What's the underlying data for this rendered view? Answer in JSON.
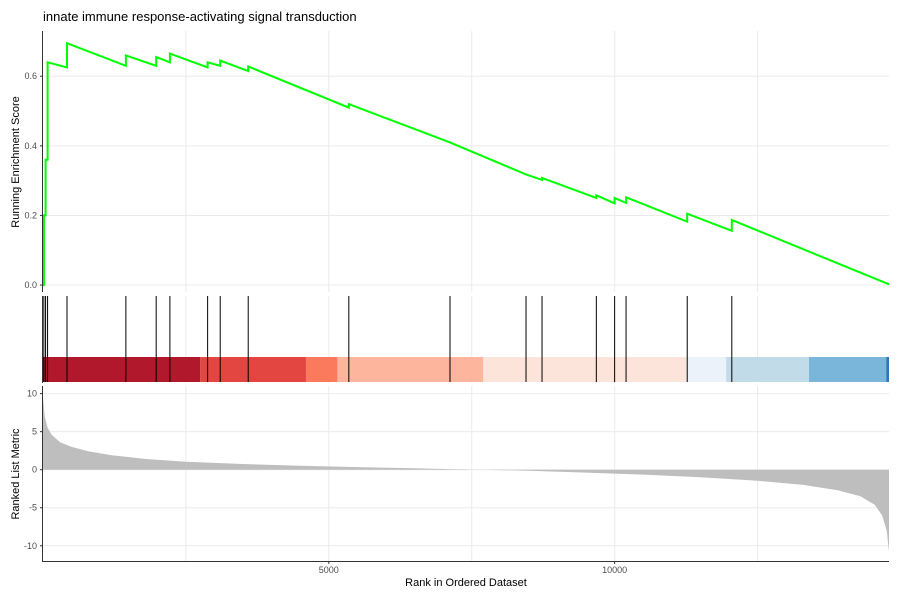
{
  "chart_data": {
    "type": "line",
    "title": "innate immune response-activating signal transduction",
    "xlabel": "Rank in Ordered Dataset",
    "x_range": [
      0,
      14800
    ],
    "x_ticks": [
      5000,
      10000
    ],
    "grid": true,
    "panels": {
      "enrichment": {
        "ylabel": "Running Enrichment Score",
        "ylim": [
          -0.02,
          0.73
        ],
        "y_ticks": [
          0.0,
          0.2,
          0.4,
          0.6
        ],
        "y_tick_labels": [
          "0.0",
          "0.2",
          "0.4",
          "0.6"
        ],
        "line_color": "#00ff00",
        "hit_ranks": [
          15,
          45,
          80,
          420,
          1450,
          1980,
          2220,
          2880,
          3100,
          3590,
          5350,
          7120,
          8450,
          8730,
          9680,
          10000,
          10200,
          11270,
          12050
        ],
        "points": [
          [
            0,
            0.0
          ],
          [
            15,
            0.0
          ],
          [
            15,
            0.2
          ],
          [
            45,
            0.2
          ],
          [
            45,
            0.36
          ],
          [
            80,
            0.36
          ],
          [
            80,
            0.64
          ],
          [
            420,
            0.625
          ],
          [
            420,
            0.695
          ],
          [
            1450,
            0.63
          ],
          [
            1450,
            0.66
          ],
          [
            1980,
            0.63
          ],
          [
            1980,
            0.655
          ],
          [
            2220,
            0.64
          ],
          [
            2220,
            0.665
          ],
          [
            2880,
            0.625
          ],
          [
            2880,
            0.64
          ],
          [
            3100,
            0.63
          ],
          [
            3100,
            0.645
          ],
          [
            3590,
            0.615
          ],
          [
            3590,
            0.628
          ],
          [
            5350,
            0.51
          ],
          [
            5350,
            0.52
          ],
          [
            7120,
            0.41
          ],
          [
            8450,
            0.318
          ],
          [
            8450,
            0.318
          ],
          [
            8730,
            0.302
          ],
          [
            8730,
            0.308
          ],
          [
            9680,
            0.25
          ],
          [
            9680,
            0.258
          ],
          [
            10000,
            0.235
          ],
          [
            10000,
            0.25
          ],
          [
            10200,
            0.236
          ],
          [
            10200,
            0.252
          ],
          [
            11270,
            0.182
          ],
          [
            11270,
            0.205
          ],
          [
            12050,
            0.156
          ],
          [
            12050,
            0.187
          ],
          [
            14800,
            0.002
          ]
        ]
      },
      "color_bar": {
        "segments": [
          {
            "from": 0,
            "to": 2750,
            "color": "#b2182b"
          },
          {
            "from": 2750,
            "to": 4600,
            "color": "#e34541"
          },
          {
            "from": 4600,
            "to": 5150,
            "color": "#fb7a5e"
          },
          {
            "from": 5150,
            "to": 7700,
            "color": "#fdb59d"
          },
          {
            "from": 7700,
            "to": 11250,
            "color": "#fde4da"
          },
          {
            "from": 11250,
            "to": 11950,
            "color": "#ebf2fa"
          },
          {
            "from": 11950,
            "to": 13400,
            "color": "#c2dbe9"
          },
          {
            "from": 13400,
            "to": 14750,
            "color": "#7ab6d9"
          },
          {
            "from": 14750,
            "to": 14800,
            "color": "#2f77b8"
          }
        ]
      },
      "ranked_list": {
        "ylabel": "Ranked List Metric",
        "ylim": [
          -12,
          11
        ],
        "y_ticks": [
          10,
          5,
          0,
          -5,
          -10
        ],
        "y_tick_labels": [
          "10",
          "5",
          "0",
          "-5",
          "-10"
        ],
        "fill_color": "#bebebe",
        "curve": [
          [
            0,
            9.5
          ],
          [
            30,
            7.0
          ],
          [
            80,
            5.5
          ],
          [
            150,
            4.6
          ],
          [
            300,
            3.6
          ],
          [
            500,
            3.0
          ],
          [
            800,
            2.4
          ],
          [
            1200,
            1.9
          ],
          [
            1800,
            1.4
          ],
          [
            2500,
            1.05
          ],
          [
            3500,
            0.75
          ],
          [
            4500,
            0.52
          ],
          [
            5500,
            0.34
          ],
          [
            6500,
            0.18
          ],
          [
            7200,
            0.06
          ],
          [
            7700,
            0.0
          ],
          [
            8500,
            -0.15
          ],
          [
            9500,
            -0.38
          ],
          [
            10500,
            -0.65
          ],
          [
            11500,
            -1.0
          ],
          [
            12500,
            -1.45
          ],
          [
            13300,
            -2.0
          ],
          [
            13900,
            -2.7
          ],
          [
            14300,
            -3.5
          ],
          [
            14550,
            -4.6
          ],
          [
            14680,
            -6.0
          ],
          [
            14760,
            -8.0
          ],
          [
            14800,
            -10.8
          ]
        ]
      }
    }
  }
}
